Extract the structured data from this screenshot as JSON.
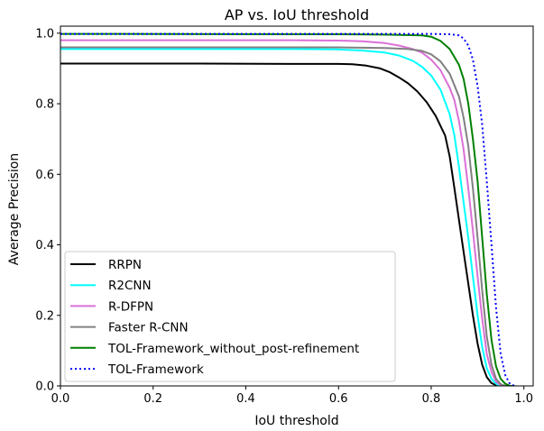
{
  "chart_data": {
    "type": "line",
    "title": "AP vs. IoU threshold",
    "xlabel": "IoU threshold",
    "ylabel": "Average Precision",
    "xlim": [
      0.0,
      1.02
    ],
    "ylim": [
      0.0,
      1.02
    ],
    "xticks": [
      "0.0",
      "0.2",
      "0.4",
      "0.6",
      "0.8",
      "1.0"
    ],
    "yticks": [
      "0.0",
      "0.2",
      "0.4",
      "0.6",
      "0.8",
      "1.0"
    ],
    "grid": false,
    "legend_position": "lower-left",
    "series": [
      {
        "name": "RRPN",
        "color": "#000000",
        "style": "solid",
        "points": [
          [
            0.0,
            0.914
          ],
          [
            0.3,
            0.914
          ],
          [
            0.5,
            0.913
          ],
          [
            0.6,
            0.913
          ],
          [
            0.63,
            0.912
          ],
          [
            0.66,
            0.908
          ],
          [
            0.69,
            0.9
          ],
          [
            0.71,
            0.89
          ],
          [
            0.73,
            0.875
          ],
          [
            0.75,
            0.858
          ],
          [
            0.77,
            0.835
          ],
          [
            0.79,
            0.805
          ],
          [
            0.81,
            0.765
          ],
          [
            0.83,
            0.71
          ],
          [
            0.84,
            0.65
          ],
          [
            0.85,
            0.56
          ],
          [
            0.86,
            0.47
          ],
          [
            0.87,
            0.38
          ],
          [
            0.88,
            0.29
          ],
          [
            0.89,
            0.2
          ],
          [
            0.9,
            0.12
          ],
          [
            0.91,
            0.06
          ],
          [
            0.92,
            0.025
          ],
          [
            0.93,
            0.008
          ],
          [
            0.94,
            0.002
          ],
          [
            0.96,
            0.0
          ],
          [
            0.98,
            0.0
          ]
        ]
      },
      {
        "name": "R2CNN",
        "color": "#00ffff",
        "style": "solid",
        "points": [
          [
            0.0,
            0.955
          ],
          [
            0.5,
            0.955
          ],
          [
            0.6,
            0.954
          ],
          [
            0.65,
            0.951
          ],
          [
            0.7,
            0.945
          ],
          [
            0.73,
            0.937
          ],
          [
            0.76,
            0.922
          ],
          [
            0.78,
            0.905
          ],
          [
            0.8,
            0.88
          ],
          [
            0.82,
            0.84
          ],
          [
            0.84,
            0.77
          ],
          [
            0.85,
            0.71
          ],
          [
            0.86,
            0.62
          ],
          [
            0.87,
            0.52
          ],
          [
            0.88,
            0.42
          ],
          [
            0.89,
            0.31
          ],
          [
            0.9,
            0.2
          ],
          [
            0.91,
            0.11
          ],
          [
            0.92,
            0.05
          ],
          [
            0.93,
            0.02
          ],
          [
            0.94,
            0.006
          ],
          [
            0.95,
            0.0
          ],
          [
            0.98,
            0.0
          ]
        ]
      },
      {
        "name": "R-DFPN",
        "color": "#da70d6",
        "style": "solid",
        "points": [
          [
            0.0,
            0.98
          ],
          [
            0.5,
            0.98
          ],
          [
            0.6,
            0.979
          ],
          [
            0.65,
            0.977
          ],
          [
            0.7,
            0.972
          ],
          [
            0.73,
            0.965
          ],
          [
            0.76,
            0.955
          ],
          [
            0.78,
            0.945
          ],
          [
            0.8,
            0.925
          ],
          [
            0.82,
            0.895
          ],
          [
            0.84,
            0.845
          ],
          [
            0.85,
            0.81
          ],
          [
            0.86,
            0.75
          ],
          [
            0.87,
            0.67
          ],
          [
            0.88,
            0.56
          ],
          [
            0.89,
            0.44
          ],
          [
            0.9,
            0.31
          ],
          [
            0.91,
            0.19
          ],
          [
            0.92,
            0.09
          ],
          [
            0.93,
            0.04
          ],
          [
            0.94,
            0.012
          ],
          [
            0.95,
            0.002
          ],
          [
            0.96,
            0.0
          ],
          [
            0.98,
            0.0
          ]
        ]
      },
      {
        "name": "Faster R-CNN",
        "color": "#808080",
        "style": "solid",
        "points": [
          [
            0.0,
            0.96
          ],
          [
            0.5,
            0.96
          ],
          [
            0.6,
            0.96
          ],
          [
            0.7,
            0.958
          ],
          [
            0.75,
            0.955
          ],
          [
            0.78,
            0.95
          ],
          [
            0.8,
            0.94
          ],
          [
            0.82,
            0.92
          ],
          [
            0.84,
            0.885
          ],
          [
            0.86,
            0.82
          ],
          [
            0.87,
            0.76
          ],
          [
            0.88,
            0.68
          ],
          [
            0.89,
            0.56
          ],
          [
            0.9,
            0.42
          ],
          [
            0.91,
            0.27
          ],
          [
            0.92,
            0.14
          ],
          [
            0.93,
            0.06
          ],
          [
            0.94,
            0.02
          ],
          [
            0.95,
            0.005
          ],
          [
            0.96,
            0.0
          ],
          [
            0.98,
            0.0
          ]
        ]
      },
      {
        "name": "TOL-Framework_without_post-refinement",
        "color": "#008000",
        "style": "solid",
        "points": [
          [
            0.0,
            0.998
          ],
          [
            0.6,
            0.997
          ],
          [
            0.7,
            0.996
          ],
          [
            0.78,
            0.994
          ],
          [
            0.8,
            0.99
          ],
          [
            0.82,
            0.978
          ],
          [
            0.84,
            0.955
          ],
          [
            0.86,
            0.91
          ],
          [
            0.87,
            0.87
          ],
          [
            0.88,
            0.8
          ],
          [
            0.89,
            0.7
          ],
          [
            0.9,
            0.58
          ],
          [
            0.91,
            0.42
          ],
          [
            0.92,
            0.26
          ],
          [
            0.93,
            0.13
          ],
          [
            0.94,
            0.055
          ],
          [
            0.95,
            0.02
          ],
          [
            0.96,
            0.006
          ],
          [
            0.97,
            0.0
          ],
          [
            0.98,
            0.0
          ]
        ]
      },
      {
        "name": "TOL-Framework",
        "color": "#0000ff",
        "style": "dotted",
        "points": [
          [
            0.0,
            0.998
          ],
          [
            0.8,
            0.998
          ],
          [
            0.84,
            0.997
          ],
          [
            0.86,
            0.994
          ],
          [
            0.87,
            0.985
          ],
          [
            0.88,
            0.965
          ],
          [
            0.89,
            0.925
          ],
          [
            0.9,
            0.85
          ],
          [
            0.91,
            0.74
          ],
          [
            0.92,
            0.58
          ],
          [
            0.93,
            0.4
          ],
          [
            0.94,
            0.22
          ],
          [
            0.95,
            0.09
          ],
          [
            0.96,
            0.03
          ],
          [
            0.97,
            0.005
          ],
          [
            0.98,
            0.0
          ]
        ]
      }
    ]
  }
}
